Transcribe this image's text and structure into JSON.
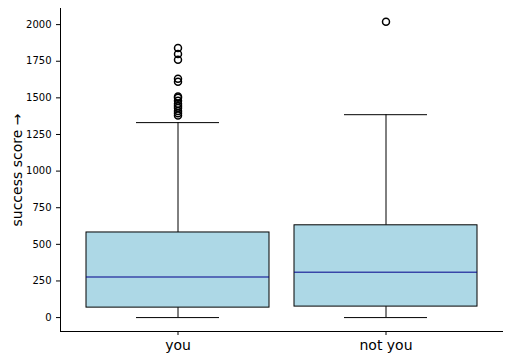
{
  "chart_data": {
    "type": "box",
    "categories": [
      "you",
      "not you"
    ],
    "whisker_low": [
      0,
      0
    ],
    "q1": [
      68,
      75
    ],
    "median": [
      277,
      310
    ],
    "q3": [
      581,
      630
    ],
    "whisker_high": [
      1331,
      1385
    ],
    "outliers": [
      [
        1380,
        1395,
        1410,
        1430,
        1445,
        1460,
        1480,
        1500,
        1510,
        1610,
        1630,
        1760,
        1800,
        1840
      ],
      [
        2020
      ]
    ],
    "color": "#add8e6",
    "ylabel": "success score",
    "ylim": [
      -95,
      2110
    ],
    "yticks": [
      0,
      250,
      500,
      750,
      1000,
      1250,
      1500,
      1750,
      2000
    ]
  }
}
